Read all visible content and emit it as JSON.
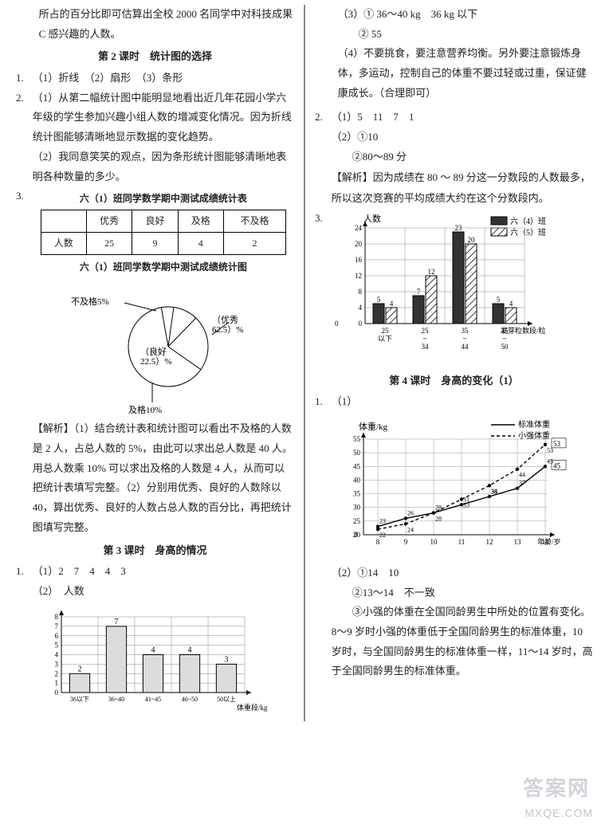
{
  "leftCol": {
    "intro": "所占的百分比即可估算出全校 2000 名同学中对科技成果 C 感兴趣的人数。",
    "lesson2_title": "第 2 课时　统计图的选择",
    "q1": "（1）折线　（2）扇形　（3）条形",
    "q2_1": "（1）从第二幅统计图中能明显地看出近几年花园小学六年级的学生参加兴趣小组人数的增减变化情况。因为折线统计图能够清晰地显示数据的变化趋势。",
    "q2_2": "（2）我同意笑笑的观点，因为条形统计图能够清晰地表明各种数量的多少。",
    "table_caption": "六（1）班同学数学期中测试成绩统计表",
    "table": {
      "headers": [
        "",
        "优秀",
        "良好",
        "及格",
        "不及格"
      ],
      "rows": [
        [
          "人数",
          "25",
          "9",
          "4",
          "2"
        ]
      ]
    },
    "pie_caption": "六（1）班同学数学期中测试成绩统计图",
    "pie": {
      "labels": [
        {
          "name": "不及格5%",
          "pct": 5,
          "side": "left"
        },
        {
          "name": "（优秀\n62.5）%",
          "pct": 62.5,
          "side": "right"
        },
        {
          "name": "（良好\n22.5）%",
          "pct": 22.5,
          "side": "mid"
        },
        {
          "name": "及格10%",
          "pct": 10,
          "side": "bottom"
        }
      ],
      "colors": {
        "stroke": "#000",
        "fill": "#fff"
      }
    },
    "analysis": "【解析】（1）结合统计表和统计图可以看出不及格的人数是 2 人，占总人数的 5%，由此可以求出总人数是 40 人。用总人数乘 10% 可以求出及格的人数是 4 人，从而可以把统计表填写完整。（2）分别用优秀、良好的人数除以 40，算出优秀、良好的人数占总人数的百分比，再把统计图填写完整。",
    "lesson3_title": "第 3 课时　身高的情况",
    "q3_1": "（1）2　7　4　4　3",
    "q3_2_label": "（2）　人数",
    "bar1": {
      "ylim": [
        0,
        8
      ],
      "ytick_step": 1,
      "categories": [
        "36以下",
        "36~40",
        "41~45",
        "46~50",
        "50以上"
      ],
      "xlabel": "体重段/kg",
      "values": [
        2,
        7,
        4,
        4,
        3
      ],
      "bar_color": "#dcdcdc",
      "border": "#000",
      "grid_color": "#888",
      "background": "#fff"
    }
  },
  "rightCol": {
    "q3_items": [
      "（3）① 36～40 kg　36 kg 以下",
      "　　② 55",
      "（4）不要挑食，要注意营养均衡。另外要注意锻炼身体，多运动，控制自己的体重不要过轻或过重，保证健康成长。（合理即可）"
    ],
    "q2": {
      "l1": "（1）5　11　7　1",
      "l2": "（2）①10",
      "l3": "　　②80～89 分",
      "l4": "【解析】因为成绩在 80 ～ 89 分这一分数段的人数最多，所以这次竞赛的平均成绩大约在这个分数段内。"
    },
    "q3_chart": {
      "ylabel": "人数",
      "legend": [
        {
          "label": "六（4）班",
          "fill": "solid"
        },
        {
          "label": "六（5）班",
          "fill": "hatch"
        }
      ],
      "ylim": [
        0,
        24
      ],
      "ytick_step": 4,
      "categories": [
        "25\n以下",
        "25\n~\n34",
        "35\n~\n44",
        "45\n~\n50"
      ],
      "xlabel": "发芽粒数段/粒",
      "series_a": [
        5,
        7,
        23,
        5
      ],
      "series_b": [
        4,
        12,
        20,
        4
      ],
      "solid_color": "#333",
      "hatch_bg": "#fff",
      "border": "#000",
      "grid_color": "#888"
    },
    "lesson4_title": "第 4 课时　身高的变化（1）",
    "line_chart": {
      "ylabel": "体重/kg",
      "legend": [
        {
          "label": "标准体重",
          "style": "solid"
        },
        {
          "label": "小强体重",
          "style": "dashed"
        }
      ],
      "ylim": [
        20,
        55
      ],
      "ytick_step": 5,
      "xcategories": [
        "8",
        "9",
        "10",
        "11",
        "12",
        "13",
        "14"
      ],
      "xlabel": "年龄/岁",
      "series_std": [
        23,
        26,
        28,
        31,
        34,
        37,
        45
      ],
      "series_xq": [
        22,
        24,
        28,
        33,
        38,
        44,
        53
      ],
      "std_labels": [
        23,
        26,
        28,
        31,
        34,
        37,
        45
      ],
      "xq_labels": [
        22,
        24,
        28,
        33,
        38,
        44,
        53
      ],
      "end_std": 45,
      "end_xq": 53,
      "line_color": "#000",
      "grid_color": "#999",
      "background": "#fff"
    },
    "q1_2_a": "（2）①14　10",
    "q1_2_b": "　　②13～14　不一致",
    "q1_2_c": "　　③小强的体重在全国同龄男生中所处的位置有变化。8～9 岁时小强的体重低于全国同龄男生的标准体重，10 岁时，与全国同龄男生的标准体重一样，11～14 岁时，高于全国同龄男生的标准体重。"
  },
  "watermark": "答案网",
  "watermark_url": "MXQE.COM"
}
